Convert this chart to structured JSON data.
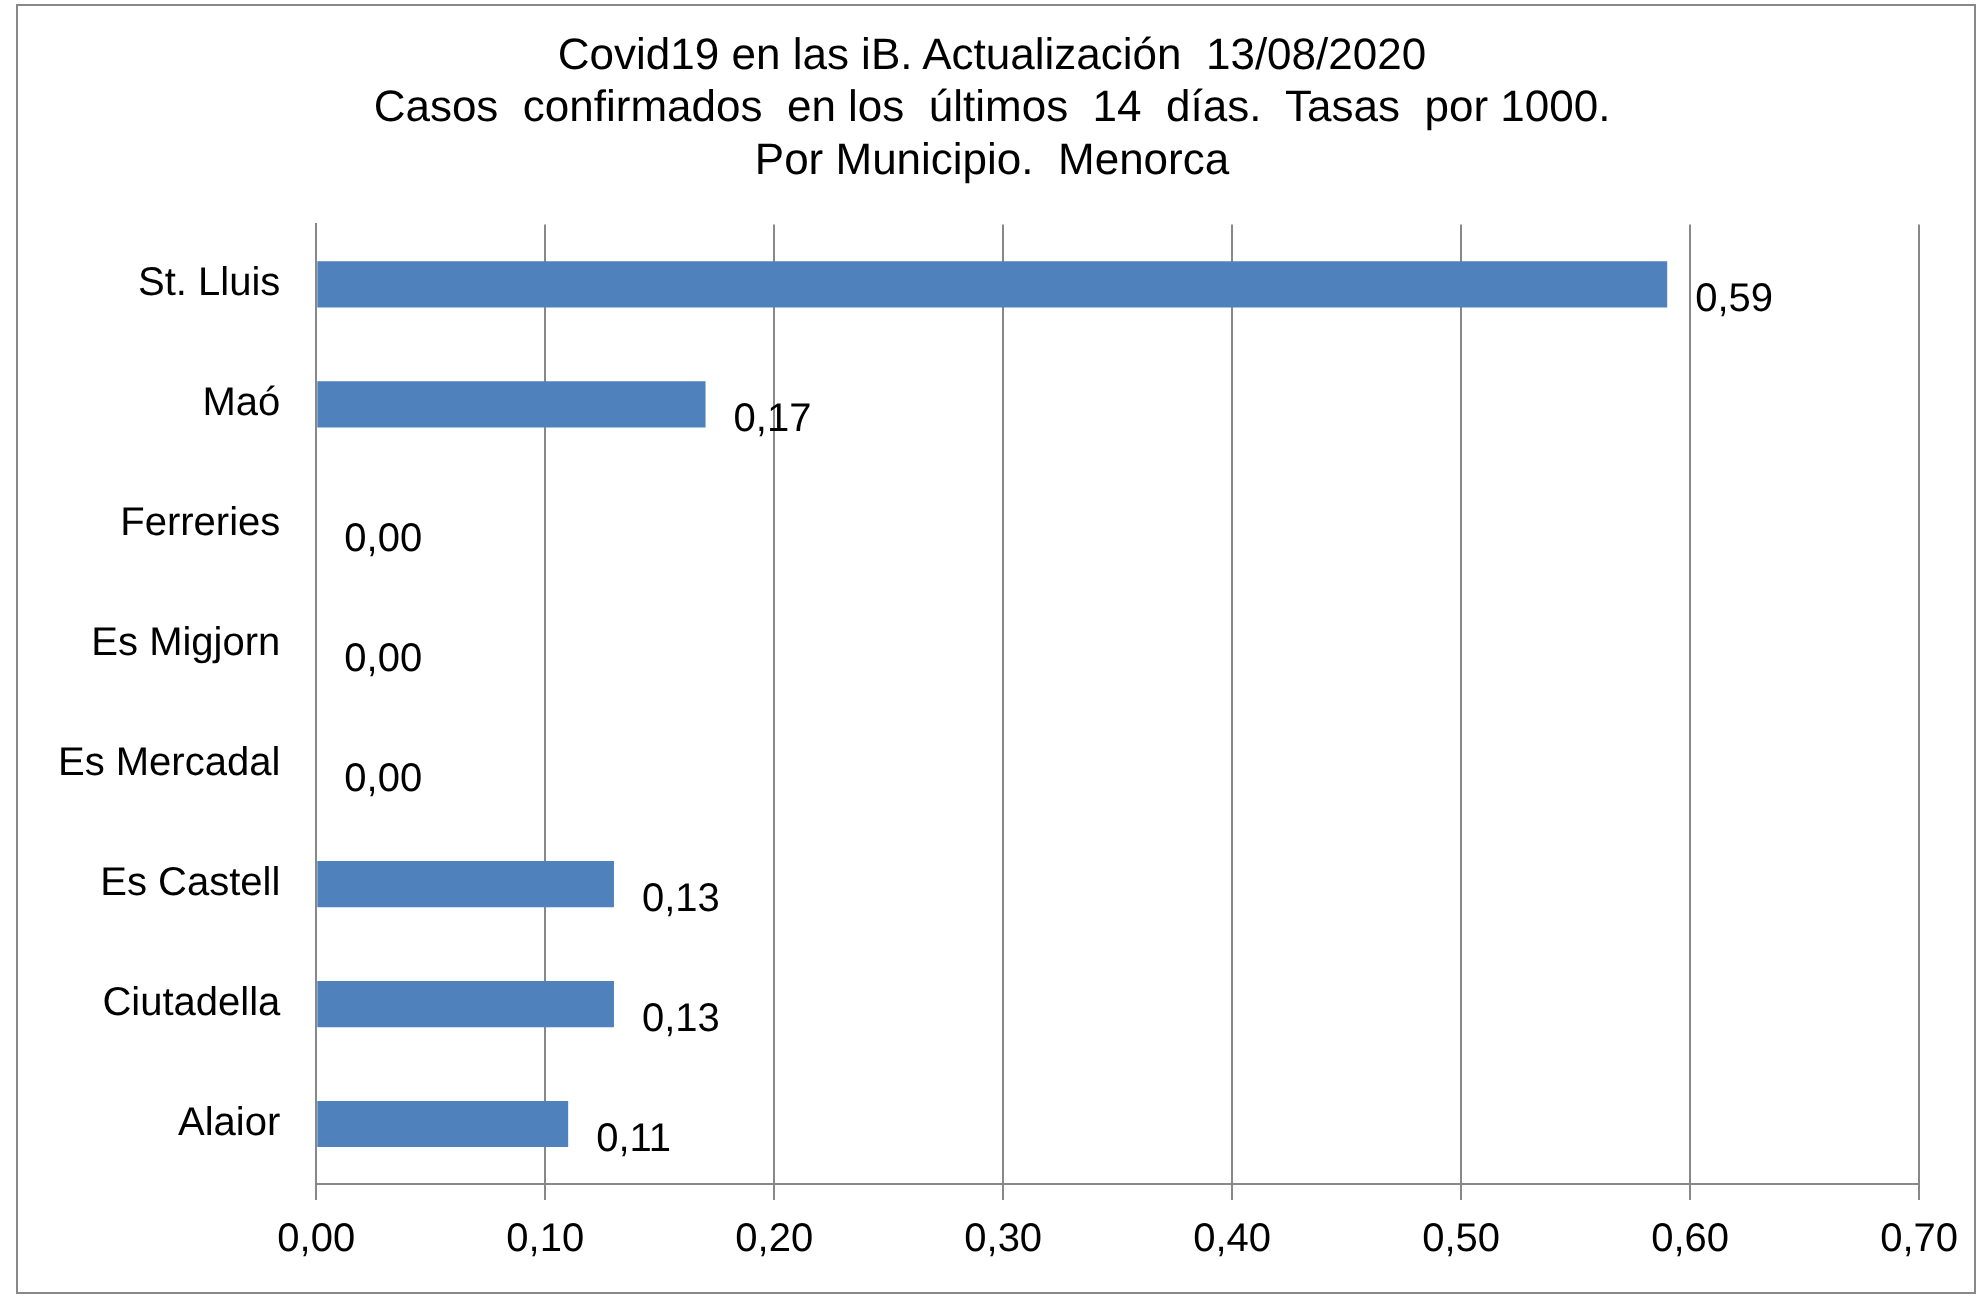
{
  "chart_data": {
    "type": "bar",
    "orientation": "horizontal",
    "title": "Covid19 en las iB. Actualización  13/08/2020\nCasos  confirmados  en los  últimos  14  días.  Tasas  por 1000.\nPor Municipio.  Menorca",
    "categories": [
      "St. Lluis",
      "Maó",
      "Ferreries",
      "Es Migjorn",
      "Es Mercadal",
      "Es Castell",
      "Ciutadella",
      "Alaior"
    ],
    "values": [
      0.59,
      0.17,
      0,
      0,
      0,
      0.13,
      0.13,
      0.11
    ],
    "value_labels": [
      "0,59",
      "0,17",
      "0,00",
      "0,00",
      "0,00",
      "0,13",
      "0,13",
      "0,11"
    ],
    "color": "#4f81bd",
    "xlim": [
      0,
      0.7
    ],
    "xticks": [
      {
        "value": 0,
        "label": "0,00"
      },
      {
        "value": 0.1,
        "label": "0,10"
      },
      {
        "value": 0.2,
        "label": "0,20"
      },
      {
        "value": 0.3,
        "label": "0,30"
      },
      {
        "value": 0.4,
        "label": "0,40"
      },
      {
        "value": 0.5,
        "label": "0,50"
      },
      {
        "value": 0.6,
        "label": "0,60"
      },
      {
        "value": 0.7,
        "label": "0,70"
      }
    ],
    "grid": "x",
    "legend": false
  }
}
